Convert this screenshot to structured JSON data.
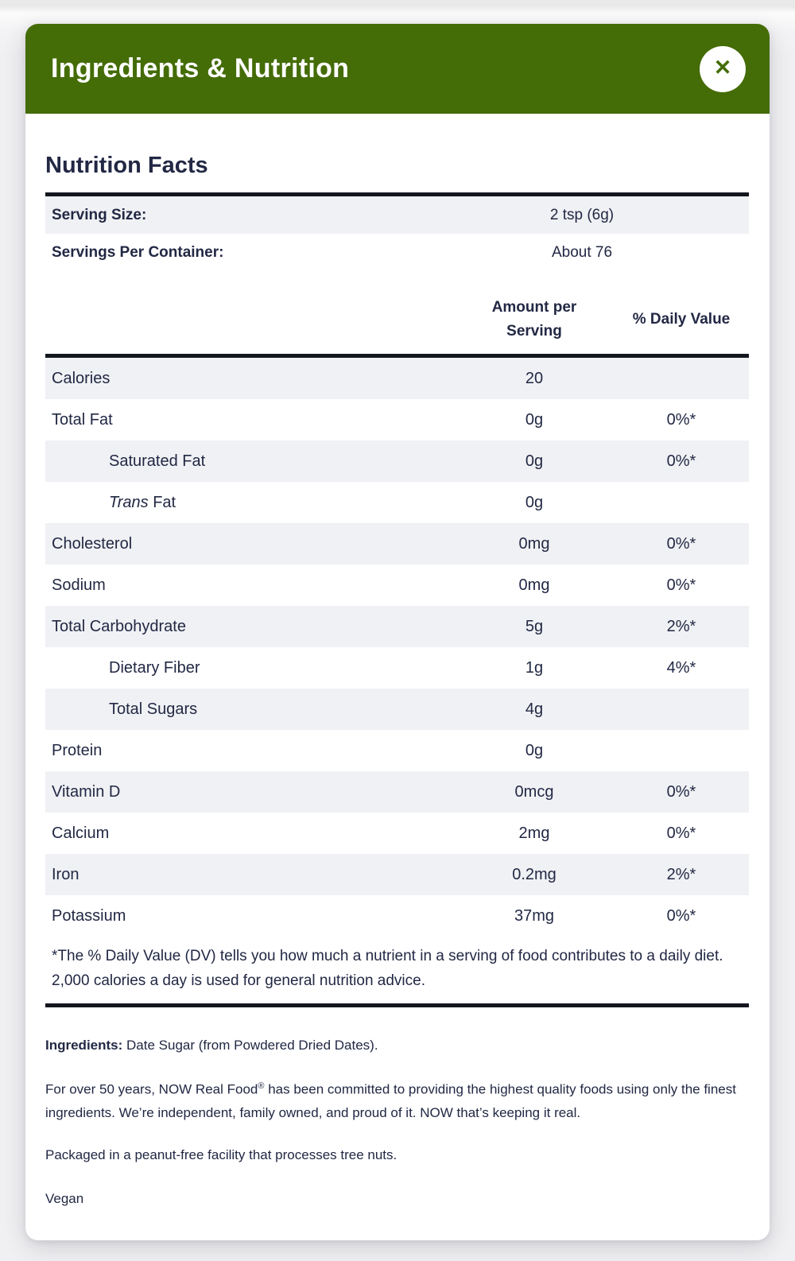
{
  "colors": {
    "header_green": "#446C07",
    "text_navy": "#222844",
    "row_shade": "#F0F1F4",
    "rule_dark": "#14161F",
    "close_circle": "#FFFFFF"
  },
  "header": {
    "title": "Ingredients & Nutrition",
    "close_icon": "✕"
  },
  "nutrition": {
    "title": "Nutrition Facts",
    "serving_size_label": "Serving Size:",
    "serving_size_value": "2 tsp (6g)",
    "servings_per_container_label": "Servings Per Container:",
    "servings_per_container_value": "About 76",
    "col_amount_line1": "Amount per",
    "col_amount_line2": "Serving",
    "col_dv": "% Daily Value",
    "rows": [
      {
        "label": "Calories",
        "amount": "20",
        "dv": ""
      },
      {
        "label": "Total Fat",
        "amount": "0g",
        "dv": "0%*"
      },
      {
        "label": "Saturated Fat",
        "amount": "0g",
        "dv": "0%*"
      },
      {
        "label_italic": "Trans",
        "label_rest": " Fat",
        "amount": "0g",
        "dv": ""
      },
      {
        "label": "Cholesterol",
        "amount": "0mg",
        "dv": "0%*"
      },
      {
        "label": "Sodium",
        "amount": "0mg",
        "dv": "0%*"
      },
      {
        "label": "Total Carbohydrate",
        "amount": "5g",
        "dv": "2%*"
      },
      {
        "label": "Dietary Fiber",
        "amount": "1g",
        "dv": "4%*"
      },
      {
        "label": "Total Sugars",
        "amount": "4g",
        "dv": ""
      },
      {
        "label": "Protein",
        "amount": "0g",
        "dv": ""
      },
      {
        "label": "Vitamin D",
        "amount": "0mcg",
        "dv": "0%*"
      },
      {
        "label": "Calcium",
        "amount": "2mg",
        "dv": "0%*"
      },
      {
        "label": "Iron",
        "amount": "0.2mg",
        "dv": "2%*"
      },
      {
        "label": "Potassium",
        "amount": "37mg",
        "dv": "0%*"
      }
    ],
    "footnote": "*The % Daily Value (DV) tells you how much a nutrient in a serving of food contributes to a daily diet. 2,000 calories a day is used for general nutrition advice."
  },
  "details": {
    "ingredients_label": "Ingredients:",
    "ingredients_value": " Date Sugar (from Powdered Dried Dates).",
    "about_before": "For over 50 years, NOW Real Food",
    "about_reg": "®",
    "about_after": " has been committed to providing the highest quality foods using only the finest ingredients. We’re independent, family owned, and proud of it. NOW that’s keeping it real.",
    "packaging": "Packaged in a peanut-free facility that processes tree nuts.",
    "diet": "Vegan"
  }
}
